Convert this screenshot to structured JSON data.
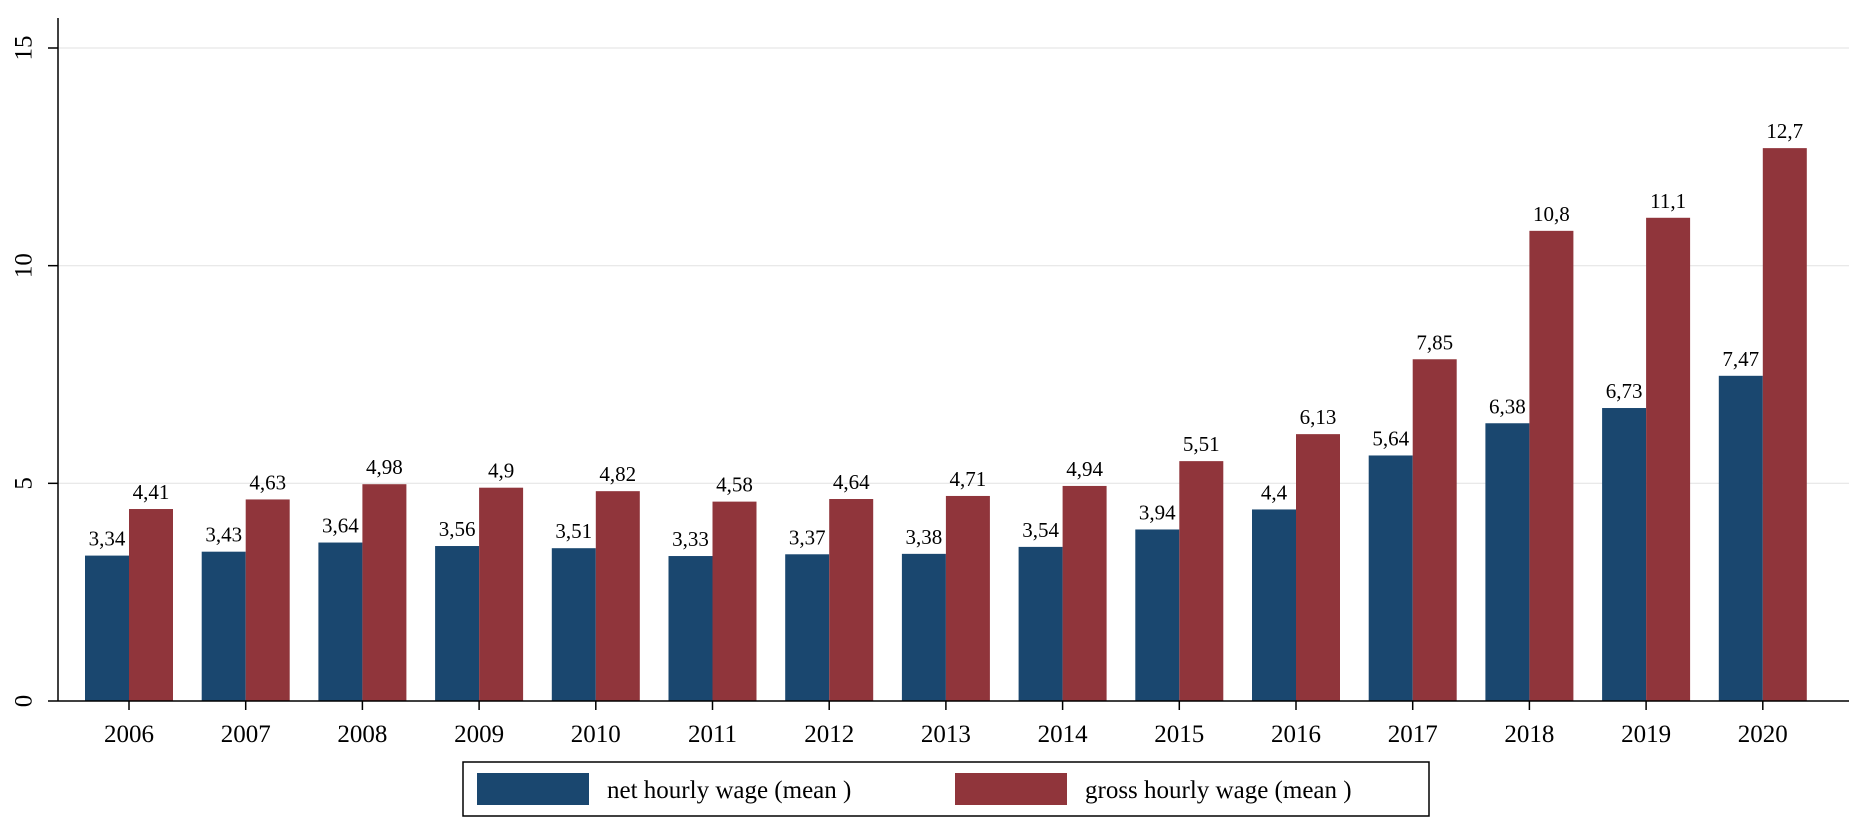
{
  "chart_data": {
    "type": "bar",
    "title": "",
    "xlabel": "",
    "ylabel": "",
    "ylim": [
      0,
      15
    ],
    "yticks": [
      0,
      5,
      10,
      15
    ],
    "grid": true,
    "legend_position": "bottom",
    "categories": [
      "2006",
      "2007",
      "2008",
      "2009",
      "2010",
      "2011",
      "2012",
      "2013",
      "2014",
      "2015",
      "2016",
      "2017",
      "2018",
      "2019",
      "2020"
    ],
    "series": [
      {
        "name": "net hourly wage (mean )",
        "color": "#1a476f",
        "values": [
          3.34,
          3.43,
          3.64,
          3.56,
          3.51,
          3.33,
          3.37,
          3.38,
          3.54,
          3.94,
          4.4,
          5.64,
          6.38,
          6.73,
          7.47
        ],
        "labels": [
          "3,34",
          "3,43",
          "3,64",
          "3,56",
          "3,51",
          "3,33",
          "3,37",
          "3,38",
          "3,54",
          "3,94",
          "4,4",
          "5,64",
          "6,38",
          "6,73",
          "7,47"
        ]
      },
      {
        "name": "gross hourly wage (mean )",
        "color": "#90353b",
        "values": [
          4.41,
          4.63,
          4.98,
          4.9,
          4.82,
          4.58,
          4.64,
          4.71,
          4.94,
          5.51,
          6.13,
          7.85,
          10.8,
          11.1,
          12.7
        ],
        "labels": [
          "4,41",
          "4,63",
          "4,98",
          "4,9",
          "4,82",
          "4,58",
          "4,64",
          "4,71",
          "4,94",
          "5,51",
          "6,13",
          "7,85",
          "10,8",
          "11,1",
          "12,7"
        ]
      }
    ]
  }
}
